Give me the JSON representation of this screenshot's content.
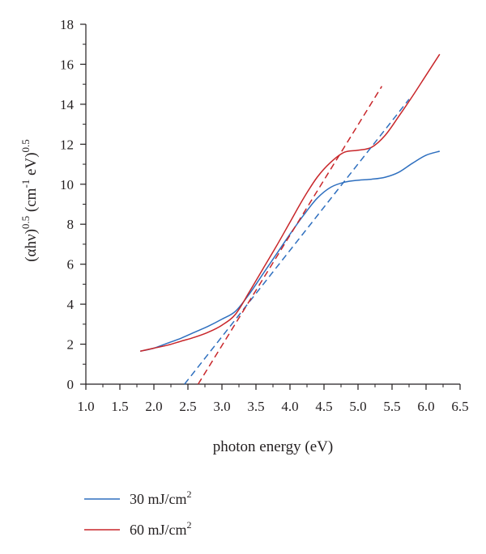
{
  "chart_data": {
    "type": "line",
    "xlabel": "photon energy (eV)",
    "ylabel": {
      "base": "(αhν)",
      "exp1": "0.5",
      "mid": " (cm",
      "exp2": "-1",
      "tail": " eV)",
      "exp3": "0.5"
    },
    "xlim": [
      1.0,
      6.5
    ],
    "ylim": [
      0,
      18
    ],
    "xticks": [
      "1.0",
      "1.5",
      "2.0",
      "2.5",
      "3.0",
      "3.5",
      "4.0",
      "4.5",
      "5.0",
      "5.5",
      "6.0",
      "6.5"
    ],
    "yticks": [
      "0",
      "2",
      "4",
      "6",
      "8",
      "10",
      "12",
      "14",
      "16",
      "18"
    ],
    "grid": false,
    "legend_position": "bottom",
    "series": [
      {
        "name": "30 mJ/cm",
        "name_sup": "2",
        "color": "#2e6fbf",
        "style": "solid",
        "x": [
          1.8,
          2.0,
          2.2,
          2.4,
          2.6,
          2.8,
          3.0,
          3.2,
          3.4,
          3.6,
          3.8,
          4.0,
          4.2,
          4.4,
          4.6,
          4.8,
          5.0,
          5.2,
          5.4,
          5.6,
          5.8,
          6.0,
          6.2
        ],
        "y": [
          1.65,
          1.8,
          2.05,
          2.3,
          2.6,
          2.9,
          3.25,
          3.65,
          4.5,
          5.5,
          6.5,
          7.5,
          8.45,
          9.3,
          9.85,
          10.1,
          10.2,
          10.25,
          10.35,
          10.6,
          11.05,
          11.45,
          11.65
        ]
      },
      {
        "name": "60 mJ/cm",
        "name_sup": "2",
        "color": "#c8262a",
        "style": "solid",
        "x": [
          1.8,
          2.0,
          2.2,
          2.4,
          2.6,
          2.8,
          3.0,
          3.2,
          3.4,
          3.6,
          3.8,
          4.0,
          4.2,
          4.4,
          4.6,
          4.8,
          5.0,
          5.2,
          5.4,
          5.6,
          5.8,
          6.0,
          6.2
        ],
        "y": [
          1.65,
          1.8,
          1.95,
          2.15,
          2.35,
          2.6,
          2.95,
          3.5,
          4.6,
          5.75,
          6.9,
          8.1,
          9.3,
          10.35,
          11.1,
          11.6,
          11.7,
          11.85,
          12.45,
          13.4,
          14.4,
          15.45,
          16.5
        ]
      },
      {
        "name": "",
        "color": "#2e6fbf",
        "style": "dashed",
        "x": [
          2.45,
          5.75
        ],
        "y": [
          0,
          14.25
        ]
      },
      {
        "name": "",
        "color": "#c8262a",
        "style": "dashed",
        "x": [
          2.65,
          5.35
        ],
        "y": [
          0,
          14.9
        ]
      }
    ],
    "legend": [
      {
        "label": "30 mJ/cm",
        "sup": "2",
        "color": "#2e6fbf"
      },
      {
        "label": "60 mJ/cm",
        "sup": "2",
        "color": "#c8262a"
      }
    ]
  }
}
